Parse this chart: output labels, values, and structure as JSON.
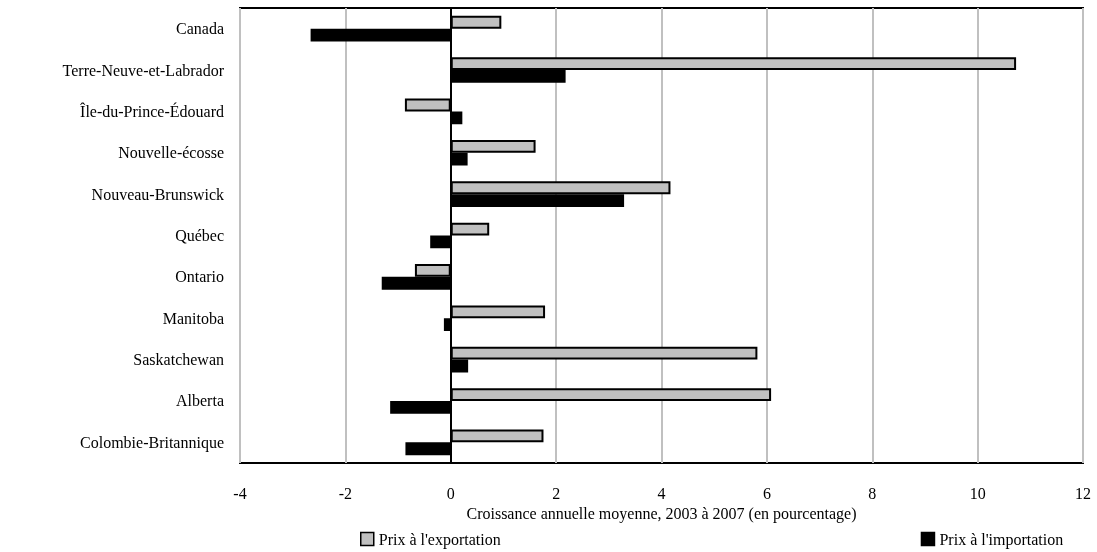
{
  "chart_data": {
    "type": "bar",
    "orientation": "horizontal",
    "xlabel": "Croissance annuelle moyenne, 2003 à 2007 (en pourcentage)",
    "categories": [
      "Canada",
      "Terre-Neuve-et-Labrador",
      "Île-du-Prince-Édouard",
      "Nouvelle-écosse",
      "Nouveau-Brunswick",
      "Québec",
      "Ontario",
      "Manitoba",
      "Saskatchewan",
      "Alberta",
      "Colombie-Britannique"
    ],
    "series": [
      {
        "name": "Prix à l'exportation",
        "color": "#c0c0c0",
        "values": [
          0.96,
          10.73,
          -0.87,
          1.61,
          4.17,
          0.73,
          -0.68,
          1.79,
          5.82,
          6.08,
          1.76
        ]
      },
      {
        "name": "Prix à l'importation",
        "color": "#000000",
        "values": [
          -2.66,
          2.18,
          0.22,
          0.32,
          3.29,
          -0.39,
          -1.31,
          -0.13,
          0.33,
          -1.15,
          -0.86
        ]
      }
    ],
    "xlim": [
      -4,
      12
    ],
    "xticks": [
      -4,
      -2,
      0,
      2,
      4,
      6,
      8,
      10,
      12
    ],
    "grid": "x",
    "legend": "bottom"
  }
}
